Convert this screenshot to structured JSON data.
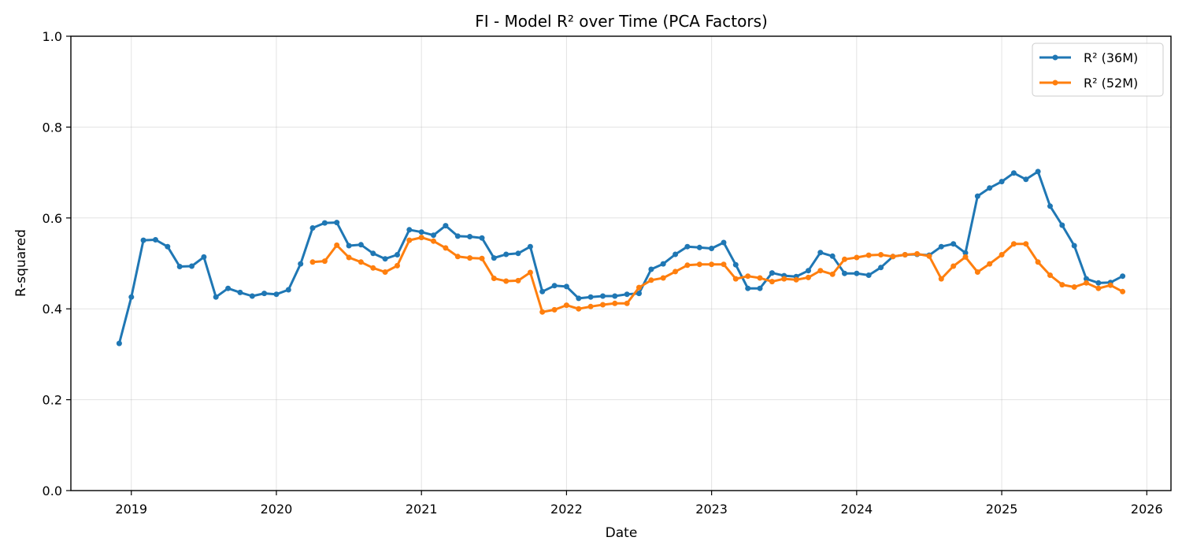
{
  "chart_data": {
    "type": "line",
    "title": "FI - Model R² over Time (PCA Factors)",
    "xlabel": "Date",
    "ylabel": "R-squared",
    "xlim": [
      "2018-08-01",
      "2026-03-01"
    ],
    "ylim": [
      0.0,
      1.0
    ],
    "x_ticks": [
      "2019",
      "2020",
      "2021",
      "2022",
      "2023",
      "2024",
      "2025",
      "2026"
    ],
    "y_ticks": [
      "0.0",
      "0.2",
      "0.4",
      "0.6",
      "0.8",
      "1.0"
    ],
    "grid": true,
    "legend": "top-right",
    "series": [
      {
        "name": "R² (36M)",
        "color": "#1f77b4",
        "start": "2018-12",
        "values": [
          0.324,
          0.426,
          0.551,
          0.552,
          0.537,
          0.493,
          0.494,
          0.514,
          0.426,
          0.445,
          0.436,
          0.428,
          0.434,
          0.432,
          0.442,
          0.499,
          0.578,
          0.589,
          0.59,
          0.539,
          0.541,
          0.522,
          0.51,
          0.519,
          0.574,
          0.569,
          0.562,
          0.583,
          0.56,
          0.559,
          0.556,
          0.512,
          0.52,
          0.522,
          0.537,
          0.438,
          0.451,
          0.449,
          0.423,
          0.426,
          0.428,
          0.428,
          0.432,
          0.434,
          0.487,
          0.499,
          0.52,
          0.537,
          0.535,
          0.533,
          0.546,
          0.497,
          0.445,
          0.445,
          0.479,
          0.473,
          0.471,
          0.484,
          0.524,
          0.516,
          0.478,
          0.478,
          0.474,
          0.491,
          0.515,
          0.519,
          0.52,
          0.518,
          0.537,
          0.543,
          0.523,
          0.648,
          0.666,
          0.68,
          0.699,
          0.685,
          0.702,
          0.626,
          0.584,
          0.539,
          0.466,
          0.457,
          0.458,
          0.472
        ]
      },
      {
        "name": "R² (52M)",
        "color": "#ff7f0e",
        "start": "2020-04",
        "values": [
          0.503,
          0.505,
          0.54,
          0.513,
          0.503,
          0.49,
          0.481,
          0.495,
          0.551,
          0.557,
          0.549,
          0.534,
          0.515,
          0.512,
          0.511,
          0.467,
          0.461,
          0.462,
          0.48,
          0.393,
          0.398,
          0.408,
          0.4,
          0.405,
          0.409,
          0.412,
          0.412,
          0.447,
          0.463,
          0.468,
          0.482,
          0.496,
          0.498,
          0.498,
          0.498,
          0.466,
          0.472,
          0.468,
          0.46,
          0.466,
          0.464,
          0.469,
          0.484,
          0.476,
          0.509,
          0.513,
          0.518,
          0.519,
          0.515,
          0.519,
          0.521,
          0.516,
          0.466,
          0.494,
          0.514,
          0.481,
          0.499,
          0.519,
          0.543,
          0.543,
          0.503,
          0.474,
          0.453,
          0.448,
          0.457,
          0.445,
          0.452,
          0.438
        ]
      }
    ]
  }
}
